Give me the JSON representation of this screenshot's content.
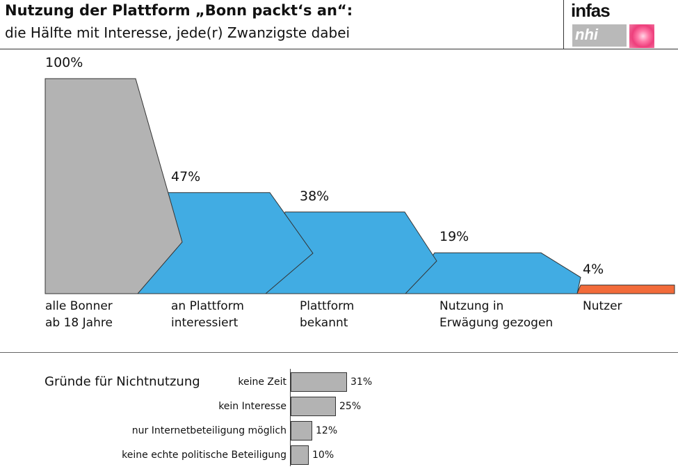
{
  "header": {
    "title": "Nutzung der Plattform „Bonn packt‘s an“:",
    "subtitle": "die Hälfte mit Interesse, jede(r) Zwanzigste dabei",
    "logo_text": "infas",
    "logo2_text": "nhi"
  },
  "chart_data": [
    {
      "type": "bar",
      "subtype": "funnel",
      "categories": [
        "alle Bonner\nab 18 Jahre",
        "an Plattform\ninteressiert",
        "Plattform\nbekannt",
        "Nutzung in\nErwägung gezogen",
        "Nutzer"
      ],
      "values": [
        100,
        47,
        38,
        19,
        4
      ],
      "labels": [
        "100%",
        "47%",
        "38%",
        "19%",
        "4%"
      ],
      "colors": [
        "#b3b3b3",
        "#41ace3",
        "#41ace3",
        "#41ace3",
        "#f26b3a"
      ],
      "ylim": [
        0,
        100
      ]
    },
    {
      "type": "bar",
      "orientation": "horizontal",
      "title": "Gründe für Nichtnutzung",
      "categories": [
        "keine Zeit",
        "kein Interesse",
        "nur Internetbeteiligung möglich",
        "keine echte politische Beteiligung"
      ],
      "values": [
        31,
        25,
        12,
        10
      ],
      "labels": [
        "31%",
        "25%",
        "12%",
        "10%"
      ],
      "color": "#b3b3b3"
    }
  ]
}
